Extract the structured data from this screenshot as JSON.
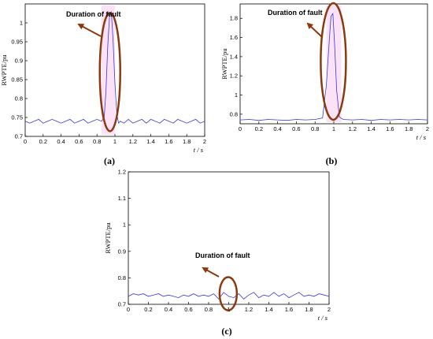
{
  "colors": {
    "signal": "#3a3ad6",
    "ellipse": "#8b3a10",
    "arrow": "#8b3a10",
    "fault_glow": "#f08ae0",
    "axis": "#000000"
  },
  "chart_data": [
    {
      "panel": "(a)",
      "type": "line",
      "ylabel": "RWPTE/pu",
      "xlabel": "t / s",
      "xlim": [
        0,
        2
      ],
      "ylim": [
        0.7,
        1.05
      ],
      "xticks": [
        0,
        0.2,
        0.4,
        0.6,
        0.8,
        1,
        1.2,
        1.4,
        1.6,
        1.8,
        2
      ],
      "xtick_labels": [
        "0",
        "0.2",
        "0.4",
        "0.6",
        "0.8",
        "1",
        "1.2",
        "1.4",
        "1.6",
        "1.8",
        "2"
      ],
      "yticks": [
        0.7,
        0.75,
        0.8,
        0.85,
        0.9,
        0.95,
        1
      ],
      "ytick_labels": [
        "0.7",
        "0.75",
        "0.8",
        "0.85",
        "0.9",
        "0.95",
        "1"
      ],
      "annotation": "Duration of fault",
      "series": [
        {
          "x": [
            0,
            0.05,
            0.1,
            0.15,
            0.2,
            0.25,
            0.3,
            0.35,
            0.4,
            0.45,
            0.5,
            0.55,
            0.6,
            0.65,
            0.7,
            0.75,
            0.8,
            0.85,
            0.88,
            0.9,
            0.92,
            0.94,
            0.96,
            0.98,
            1,
            1.02,
            1.04,
            1.06,
            1.1,
            1.15,
            1.2,
            1.25,
            1.3,
            1.35,
            1.4,
            1.45,
            1.5,
            1.55,
            1.6,
            1.65,
            1.7,
            1.75,
            1.8,
            1.85,
            1.9,
            1.95,
            2
          ],
          "y": [
            0.74,
            0.735,
            0.74,
            0.745,
            0.735,
            0.74,
            0.745,
            0.74,
            0.735,
            0.74,
            0.745,
            0.735,
            0.74,
            0.745,
            0.735,
            0.74,
            0.745,
            0.74,
            0.75,
            0.82,
            0.94,
            1.02,
            1.03,
            0.95,
            0.84,
            0.76,
            0.735,
            0.74,
            0.735,
            0.745,
            0.735,
            0.74,
            0.745,
            0.735,
            0.745,
            0.74,
            0.735,
            0.745,
            0.74,
            0.735,
            0.745,
            0.74,
            0.735,
            0.74,
            0.745,
            0.735,
            0.74
          ]
        }
      ]
    },
    {
      "panel": "(b)",
      "type": "line",
      "ylabel": "RWPTE/pu",
      "xlabel": "t / s",
      "xlim": [
        0,
        2
      ],
      "ylim": [
        0.7,
        1.95
      ],
      "xticks": [
        0,
        0.2,
        0.4,
        0.6,
        0.8,
        1,
        1.2,
        1.4,
        1.6,
        1.8,
        2
      ],
      "xtick_labels": [
        "0",
        "0.2",
        "0.4",
        "0.6",
        "0.8",
        "1",
        "1.2",
        "1.4",
        "1.6",
        "1.8",
        "2"
      ],
      "yticks": [
        0.8,
        1,
        1.2,
        1.4,
        1.6,
        1.8
      ],
      "ytick_labels": [
        "0.8",
        "1",
        "1.2",
        "1.4",
        "1.6",
        "1.8"
      ],
      "annotation": "Duration of fault",
      "series": [
        {
          "x": [
            0,
            0.1,
            0.2,
            0.3,
            0.4,
            0.5,
            0.6,
            0.7,
            0.8,
            0.88,
            0.92,
            0.95,
            0.97,
            0.99,
            1.01,
            1.03,
            1.06,
            1.1,
            1.2,
            1.3,
            1.4,
            1.5,
            1.6,
            1.7,
            1.8,
            1.9,
            2
          ],
          "y": [
            0.74,
            0.745,
            0.735,
            0.745,
            0.74,
            0.735,
            0.745,
            0.74,
            0.745,
            0.76,
            1.1,
            1.55,
            1.82,
            1.85,
            1.5,
            1.05,
            0.77,
            0.745,
            0.74,
            0.745,
            0.735,
            0.745,
            0.74,
            0.745,
            0.74,
            0.745,
            0.74
          ]
        }
      ]
    },
    {
      "panel": "(c)",
      "type": "line",
      "ylabel": "RWPTE/pu",
      "xlabel": "t / s",
      "xlim": [
        0,
        2
      ],
      "ylim": [
        0.7,
        1.2
      ],
      "xticks": [
        0,
        0.2,
        0.4,
        0.6,
        0.8,
        1,
        1.2,
        1.4,
        1.6,
        1.8,
        2
      ],
      "xtick_labels": [
        "0",
        "0.2",
        "0.4",
        "0.6",
        "0.8",
        "1",
        "1.2",
        "1.4",
        "1.6",
        "1.8",
        "2"
      ],
      "yticks": [
        0.7,
        0.8,
        0.9,
        1,
        1.1,
        1.2
      ],
      "ytick_labels": [
        "0.7",
        "0.8",
        "0.9",
        "1",
        "1.1",
        "1.2"
      ],
      "annotation": "Duration of fault",
      "series": [
        {
          "x": [
            0,
            0.05,
            0.1,
            0.15,
            0.2,
            0.25,
            0.3,
            0.35,
            0.4,
            0.45,
            0.5,
            0.55,
            0.6,
            0.65,
            0.7,
            0.75,
            0.8,
            0.85,
            0.9,
            0.95,
            1,
            1.05,
            1.1,
            1.15,
            1.2,
            1.25,
            1.3,
            1.35,
            1.4,
            1.45,
            1.5,
            1.55,
            1.6,
            1.65,
            1.7,
            1.75,
            1.8,
            1.85,
            1.9,
            1.95,
            2
          ],
          "y": [
            0.73,
            0.74,
            0.735,
            0.74,
            0.73,
            0.735,
            0.74,
            0.73,
            0.735,
            0.73,
            0.725,
            0.735,
            0.73,
            0.74,
            0.73,
            0.735,
            0.73,
            0.74,
            0.72,
            0.745,
            0.73,
            0.725,
            0.74,
            0.72,
            0.735,
            0.745,
            0.725,
            0.735,
            0.73,
            0.745,
            0.73,
            0.74,
            0.725,
            0.735,
            0.745,
            0.73,
            0.735,
            0.73,
            0.74,
            0.735,
            0.73
          ]
        }
      ]
    }
  ]
}
